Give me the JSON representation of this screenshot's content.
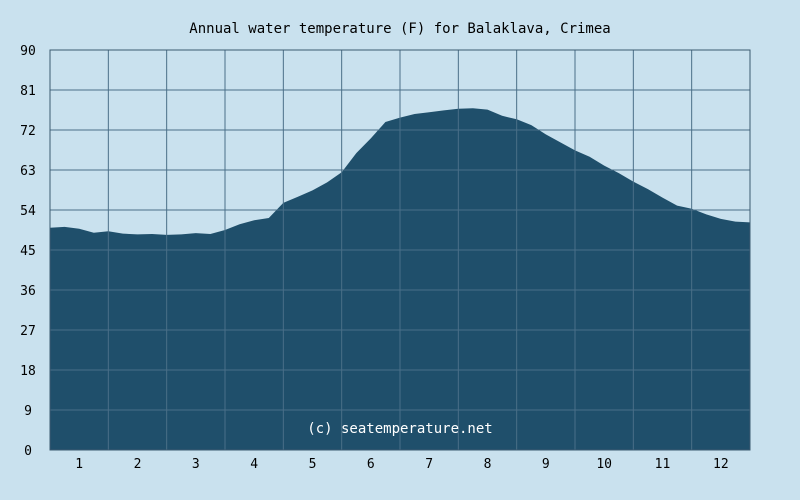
{
  "chart_data": {
    "type": "area",
    "title": "Annual water temperature (F) for Balaklava, Crimea",
    "watermark": "(c) seatemperature.net",
    "xlabel": "",
    "ylabel": "",
    "ylim": [
      0,
      90
    ],
    "yticks": [
      "0",
      "9",
      "18",
      "27",
      "36",
      "45",
      "54",
      "63",
      "72",
      "81",
      "90"
    ],
    "xticks": [
      "1",
      "2",
      "3",
      "4",
      "5",
      "6",
      "7",
      "8",
      "9",
      "10",
      "11",
      "12"
    ],
    "grid": true,
    "colors": {
      "background": "#c9e1ee",
      "fill": "#1f4f6b",
      "grid": "#4a6f88",
      "axis": "#3c5a70"
    },
    "series": [
      {
        "x": [
          1.0,
          1.25,
          1.5,
          1.75,
          2.0,
          2.25,
          2.5,
          2.75,
          3.0,
          3.25,
          3.5,
          3.75,
          4.0,
          4.25,
          4.5,
          4.75,
          5.0,
          5.25,
          5.5,
          5.75,
          6.0,
          6.25,
          6.5,
          6.75,
          7.0,
          7.25,
          7.5,
          7.75,
          8.0,
          8.25,
          8.5,
          8.75,
          9.0,
          9.25,
          9.5,
          9.75,
          10.0,
          10.25,
          10.5,
          10.75,
          11.0,
          11.25,
          11.5,
          11.75,
          12.0,
          12.25,
          12.5,
          12.75,
          13.0
        ],
        "values": [
          50.0,
          50.2,
          49.8,
          48.9,
          49.2,
          48.7,
          48.5,
          48.6,
          48.4,
          48.5,
          48.8,
          48.6,
          49.5,
          50.8,
          51.7,
          52.2,
          55.6,
          57.0,
          58.4,
          60.2,
          62.5,
          66.8,
          70.1,
          73.8,
          74.8,
          75.6,
          76.0,
          76.4,
          76.8,
          76.9,
          76.6,
          75.2,
          74.4,
          73.1,
          71.0,
          69.2,
          67.4,
          66.0,
          64.0,
          62.3,
          60.4,
          58.7,
          56.8,
          55.0,
          54.3,
          53.0,
          52.0,
          51.4,
          51.2
        ]
      }
    ]
  }
}
